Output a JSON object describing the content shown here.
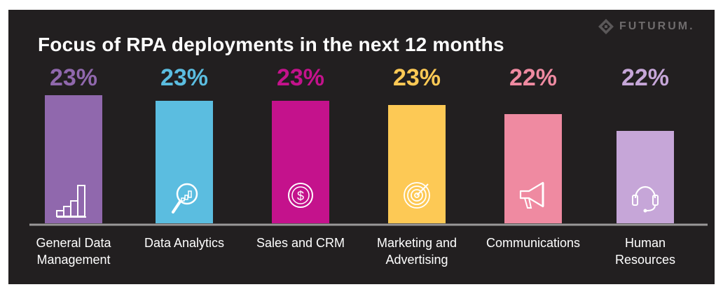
{
  "logo": {
    "text": "FUTURUM."
  },
  "chart_data": {
    "type": "bar",
    "title": "Focus of RPA deployments in the next 12 months",
    "categories": [
      [
        "General Data",
        "Management"
      ],
      [
        "Data Analytics"
      ],
      [
        "Sales and CRM"
      ],
      [
        "Marketing and",
        "Advertising"
      ],
      [
        "Communications"
      ],
      [
        "Human",
        "Resources"
      ]
    ],
    "values": [
      23,
      23,
      23,
      23,
      22,
      22
    ],
    "value_labels": [
      "23%",
      "23%",
      "23%",
      "23%",
      "22%",
      "22%"
    ],
    "bar_colors": [
      "#9068ad",
      "#5bbde0",
      "#c4128c",
      "#fdc955",
      "#ef8aa1",
      "#c6a6d8"
    ],
    "label_colors": [
      "#9068ad",
      "#5bbde0",
      "#c4128c",
      "#fdc955",
      "#ef8aa1",
      "#c6a6d8"
    ],
    "icons": [
      "bar-chart-icon",
      "magnifier-chart-icon",
      "dollar-coin-icon",
      "target-icon",
      "megaphone-icon",
      "headset-icon"
    ]
  }
}
